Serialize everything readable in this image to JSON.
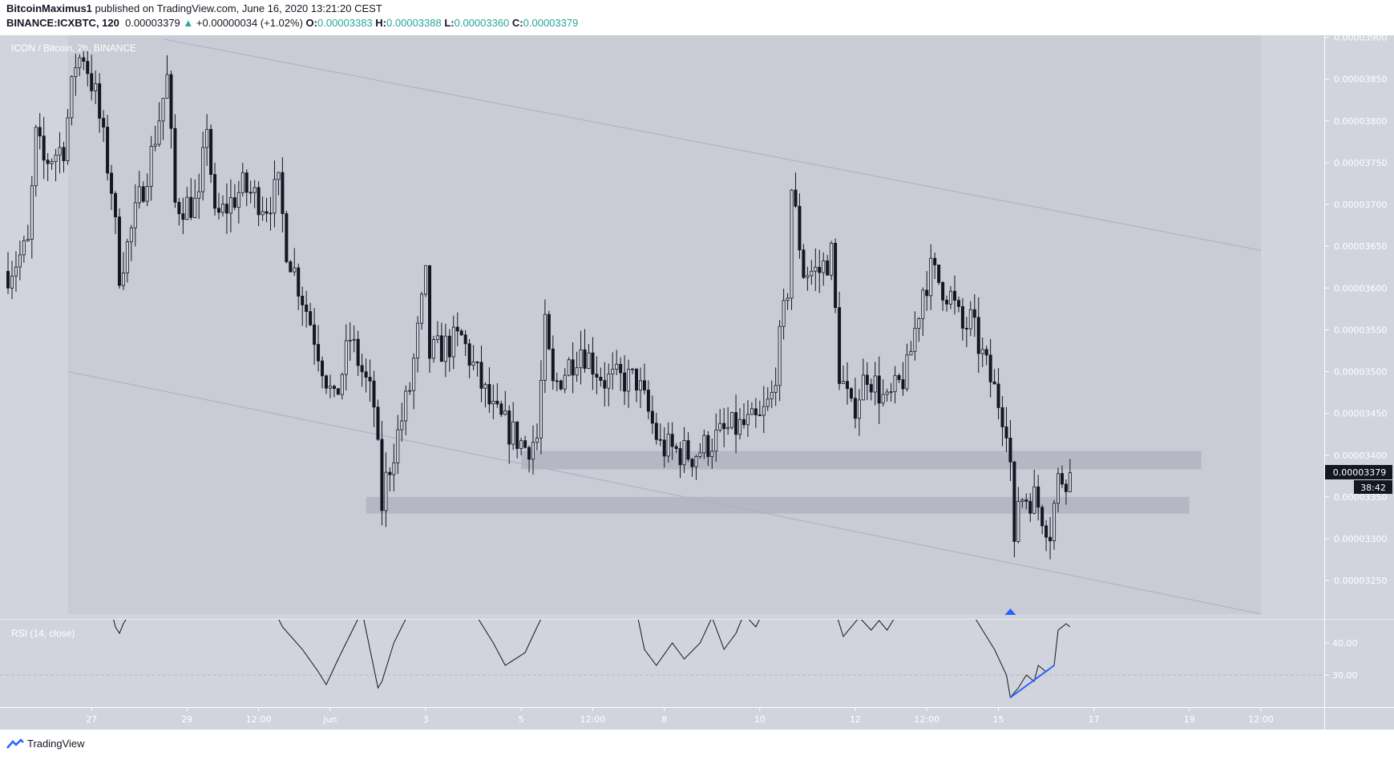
{
  "header": {
    "author": "BitcoinMaximus1",
    "published": "published on TradingView.com, June 16, 2020 13:21:20 CEST",
    "symbol": "BINANCE:ICXBTC, 120",
    "last": "0.00003379",
    "change": "+0.00000034 (+1.02%)",
    "o_label": "O:",
    "o": "0.00003383",
    "h_label": "H:",
    "h": "0.00003388",
    "l_label": "L:",
    "l": "0.00003360",
    "c_label": "C:",
    "c": "0.00003379"
  },
  "footer": {
    "brand": "TradingView"
  },
  "colors": {
    "pane": "#d1d4dc",
    "channel": "#c9cbd5",
    "zone": "#b6b7c2",
    "trendline": "#b7a9c6",
    "accent": "#2962ff",
    "up": "#26a69a"
  },
  "chart_data": {
    "type": "candlestick",
    "title": "ICON / Bitcoin, 2h, BINANCE",
    "y_unit": "BTC (x1e-8 in anchors)",
    "ylim": [
      3205,
      3905
    ],
    "y_ticks": [
      "0.00003900",
      "0.00003850",
      "0.00003800",
      "0.00003750",
      "0.00003700",
      "0.00003650",
      "0.00003600",
      "0.00003550",
      "0.00003500",
      "0.00003450",
      "0.00003400",
      "0.00003350",
      "0.00003300",
      "0.00003250"
    ],
    "x_ticks": [
      {
        "t": "05-27 00",
        "label": "27"
      },
      {
        "t": "05-29 00",
        "label": "29"
      },
      {
        "t": "05-30 12",
        "label": "12:00"
      },
      {
        "t": "06-01 00",
        "label": "Jun"
      },
      {
        "t": "06-03 00",
        "label": "3"
      },
      {
        "t": "06-05 00",
        "label": "5"
      },
      {
        "t": "06-06 12",
        "label": "12:00"
      },
      {
        "t": "06-08 00",
        "label": "8"
      },
      {
        "t": "06-10 00",
        "label": "10"
      },
      {
        "t": "06-12 00",
        "label": "12"
      },
      {
        "t": "06-13 12",
        "label": "12:00"
      },
      {
        "t": "06-15 00",
        "label": "15"
      },
      {
        "t": "06-17 00",
        "label": "17"
      },
      {
        "t": "06-19 00",
        "label": "19"
      },
      {
        "t": "06-20 12",
        "label": "12:00"
      }
    ],
    "price_anchors": [
      [
        "05-25 06",
        3620
      ],
      [
        "05-25 16",
        3650
      ],
      [
        "05-25 20",
        3780
      ],
      [
        "05-26 00",
        3750
      ],
      [
        "05-26 10",
        3770
      ],
      [
        "05-26 16",
        3870
      ],
      [
        "05-26 20",
        3880
      ],
      [
        "05-27 02",
        3830
      ],
      [
        "05-27 10",
        3720
      ],
      [
        "05-27 14",
        3620
      ],
      [
        "05-27 18",
        3650
      ],
      [
        "05-28 06",
        3760
      ],
      [
        "05-28 14",
        3850
      ],
      [
        "05-28 18",
        3700
      ],
      [
        "05-29 06",
        3700
      ],
      [
        "05-29 10",
        3800
      ],
      [
        "05-29 14",
        3680
      ],
      [
        "05-30 04",
        3720
      ],
      [
        "05-30 16",
        3700
      ],
      [
        "05-30 22",
        3720
      ],
      [
        "05-31 02",
        3650
      ],
      [
        "05-31 14",
        3560
      ],
      [
        "06-01 02",
        3460
      ],
      [
        "06-01 10",
        3540
      ],
      [
        "06-01 22",
        3460
      ],
      [
        "06-02 02",
        3340
      ],
      [
        "06-02 04",
        3370
      ],
      [
        "06-02 16",
        3480
      ],
      [
        "06-03 00",
        3610
      ],
      [
        "06-03 02",
        3520
      ],
      [
        "06-03 18",
        3540
      ],
      [
        "06-04 10",
        3450
      ],
      [
        "06-05 02",
        3410
      ],
      [
        "06-05 08",
        3420
      ],
      [
        "06-05 12",
        3550
      ],
      [
        "06-05 16",
        3480
      ],
      [
        "06-06 06",
        3530
      ],
      [
        "06-06 18",
        3490
      ],
      [
        "06-07 10",
        3490
      ],
      [
        "06-07 22",
        3410
      ],
      [
        "06-08 14",
        3400
      ],
      [
        "06-09 08",
        3430
      ],
      [
        "06-10 00",
        3440
      ],
      [
        "06-10 06",
        3470
      ],
      [
        "06-10 14",
        3600
      ],
      [
        "06-10 16",
        3720
      ],
      [
        "06-10 22",
        3620
      ],
      [
        "06-11 06",
        3620
      ],
      [
        "06-11 12",
        3640
      ],
      [
        "06-11 16",
        3500
      ],
      [
        "06-11 22",
        3450
      ],
      [
        "06-12 06",
        3500
      ],
      [
        "06-12 16",
        3460
      ],
      [
        "06-13 02",
        3500
      ],
      [
        "06-13 10",
        3600
      ],
      [
        "06-13 14",
        3620
      ],
      [
        "06-14 00",
        3590
      ],
      [
        "06-14 06",
        3550
      ],
      [
        "06-14 10",
        3560
      ],
      [
        "06-14 20",
        3490
      ],
      [
        "06-15 04",
        3440
      ],
      [
        "06-15 06",
        3390
      ],
      [
        "06-15 08",
        3280
      ],
      [
        "06-15 10",
        3350
      ],
      [
        "06-15 18",
        3350
      ],
      [
        "06-16 02",
        3310
      ],
      [
        "06-16 06",
        3370
      ],
      [
        "06-16 12",
        3379
      ]
    ],
    "last_price": "0.00003379",
    "countdown": "38:42",
    "zones": [
      {
        "from": "06-05 00",
        "to": "06-19 06",
        "low": 3383,
        "high": 3405
      },
      {
        "from": "06-01 18",
        "to": "06-19 00",
        "low": 3330,
        "high": 3350
      }
    ],
    "channel": {
      "upper": [
        [
          "05-28 12",
          3898
        ],
        [
          "06-20 12",
          3645
        ]
      ],
      "lower": [
        [
          "05-26 12",
          3500
        ],
        [
          "06-20 12",
          3210
        ]
      ]
    },
    "signal_marker": {
      "t": "06-15 06",
      "type": "triangle-up"
    },
    "rsi": {
      "label": "RSI (14, close)",
      "y_ticks": [
        "40.00",
        "30.00"
      ],
      "dashed_level": 30,
      "points": [
        [
          "05-25 06",
          60
        ],
        [
          "05-27 10",
          50
        ],
        [
          "05-27 12",
          45
        ],
        [
          "05-27 14",
          43
        ],
        [
          "05-27 16",
          46
        ],
        [
          "05-27 20",
          50
        ],
        [
          "05-30 20",
          50
        ],
        [
          "05-31 00",
          45
        ],
        [
          "05-31 10",
          38
        ],
        [
          "05-31 18",
          31
        ],
        [
          "05-31 22",
          27
        ],
        [
          "06-01 04",
          35
        ],
        [
          "06-01 12",
          45
        ],
        [
          "06-01 16",
          50
        ],
        [
          "06-02 00",
          26
        ],
        [
          "06-02 02",
          28
        ],
        [
          "06-02 08",
          40
        ],
        [
          "06-02 16",
          50
        ],
        [
          "06-04 02",
          48
        ],
        [
          "06-04 10",
          40
        ],
        [
          "06-04 16",
          33
        ],
        [
          "06-05 02",
          37
        ],
        [
          "06-05 08",
          45
        ],
        [
          "06-05 12",
          50
        ],
        [
          "06-07 10",
          50
        ],
        [
          "06-07 14",
          38
        ],
        [
          "06-07 20",
          33
        ],
        [
          "06-08 04",
          40
        ],
        [
          "06-08 10",
          35
        ],
        [
          "06-08 18",
          40
        ],
        [
          "06-09 00",
          48
        ],
        [
          "06-09 06",
          38
        ],
        [
          "06-09 12",
          43
        ],
        [
          "06-09 16",
          49
        ],
        [
          "06-09 22",
          45
        ],
        [
          "06-10 02",
          50
        ],
        [
          "06-11 14",
          50
        ],
        [
          "06-11 18",
          42
        ],
        [
          "06-12 02",
          48
        ],
        [
          "06-12 08",
          44
        ],
        [
          "06-12 12",
          47
        ],
        [
          "06-12 16",
          44
        ],
        [
          "06-12 22",
          50
        ],
        [
          "06-14 10",
          50
        ],
        [
          "06-14 16",
          44
        ],
        [
          "06-14 22",
          38
        ],
        [
          "06-15 04",
          30
        ],
        [
          "06-15 06",
          23
        ],
        [
          "06-15 10",
          26
        ],
        [
          "06-15 14",
          30
        ],
        [
          "06-15 18",
          28
        ],
        [
          "06-15 20",
          33
        ],
        [
          "06-16 00",
          31
        ],
        [
          "06-16 04",
          33
        ],
        [
          "06-16 06",
          44
        ],
        [
          "06-16 10",
          46
        ],
        [
          "06-16 12",
          45
        ]
      ],
      "divergence_line": [
        [
          "06-15 06",
          23
        ],
        [
          "06-16 04",
          33
        ]
      ]
    }
  }
}
